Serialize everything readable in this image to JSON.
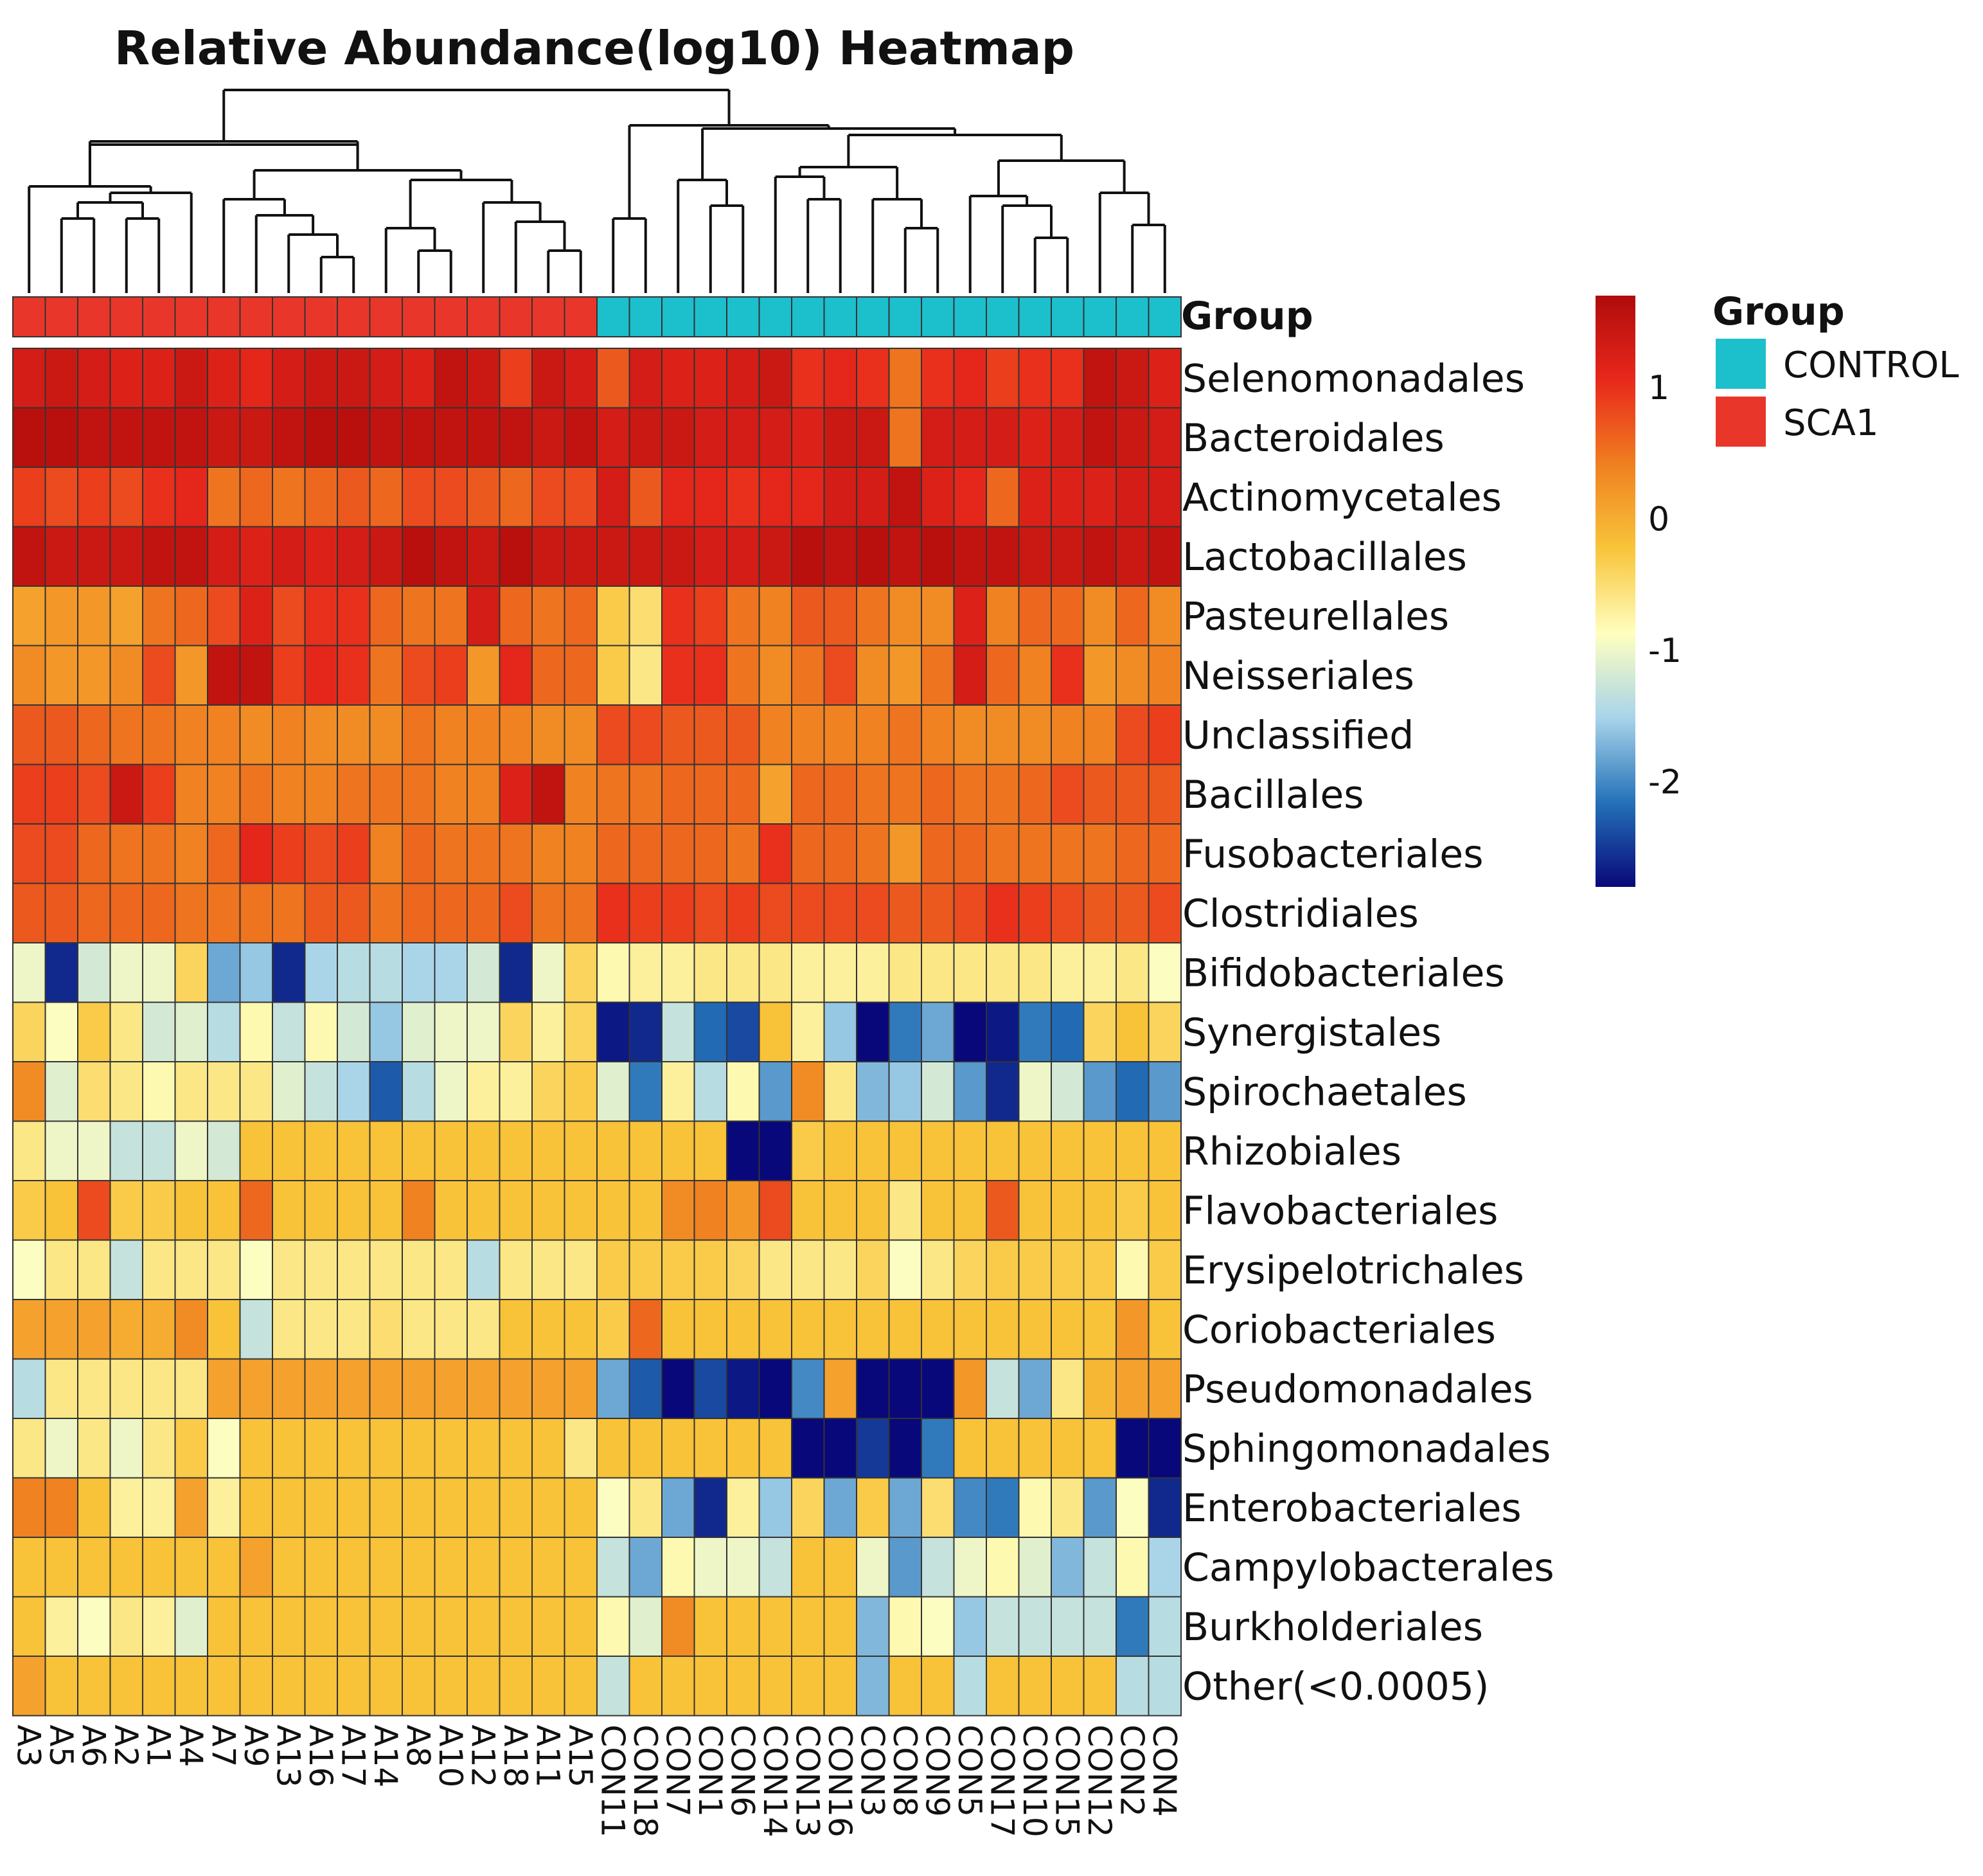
{
  "chart_data": {
    "type": "heatmap",
    "title": "Relative Abundance(log10) Heatmap",
    "group_row_label": "Group",
    "columns": [
      "A3",
      "A5",
      "A6",
      "A2",
      "A1",
      "A4",
      "A7",
      "A9",
      "A13",
      "A16",
      "A17",
      "A14",
      "A8",
      "A10",
      "A12",
      "A18",
      "A11",
      "A15",
      "CON11",
      "CON18",
      "CON7",
      "CON1",
      "CON6",
      "CON14",
      "CON13",
      "CON16",
      "CON3",
      "CON8",
      "CON9",
      "CON5",
      "CON17",
      "CON10",
      "CON15",
      "CON12",
      "CON2",
      "CON4"
    ],
    "column_groups": [
      "SCA1",
      "SCA1",
      "SCA1",
      "SCA1",
      "SCA1",
      "SCA1",
      "SCA1",
      "SCA1",
      "SCA1",
      "SCA1",
      "SCA1",
      "SCA1",
      "SCA1",
      "SCA1",
      "SCA1",
      "SCA1",
      "SCA1",
      "SCA1",
      "CONTROL",
      "CONTROL",
      "CONTROL",
      "CONTROL",
      "CONTROL",
      "CONTROL",
      "CONTROL",
      "CONTROL",
      "CONTROL",
      "CONTROL",
      "CONTROL",
      "CONTROL",
      "CONTROL",
      "CONTROL",
      "CONTROL",
      "CONTROL",
      "CONTROL",
      "CONTROL"
    ],
    "rows": [
      "Selenomonadales",
      "Bacteroidales",
      "Actinomycetales",
      "Lactobacillales",
      "Pasteurellales",
      "Neisseriales",
      "Unclassified",
      "Bacillales",
      "Fusobacteriales",
      "Clostridiales",
      "Bifidobacteriales",
      "Synergistales",
      "Spirochaetales",
      "Rhizobiales",
      "Flavobacteriales",
      "Erysipelotrichales",
      "Coriobacteriales",
      "Pseudomonadales",
      "Sphingomonadales",
      "Enterobacteriales",
      "Campylobacterales",
      "Burkholderiales",
      "Other(<0.0005)"
    ],
    "values": [
      [
        1.3,
        1.4,
        1.3,
        1.2,
        1.2,
        1.4,
        1.2,
        1.1,
        1.3,
        1.4,
        1.4,
        1.3,
        1.2,
        1.5,
        1.4,
        0.9,
        1.4,
        1.3,
        0.7,
        1.3,
        1.2,
        1.2,
        1.3,
        1.4,
        1.0,
        1.1,
        1.0,
        0.5,
        1.0,
        1.1,
        0.9,
        1.0,
        1.0,
        1.5,
        1.4,
        1.2
      ],
      [
        1.6,
        1.6,
        1.5,
        1.5,
        1.5,
        1.5,
        1.4,
        1.4,
        1.5,
        1.6,
        1.6,
        1.5,
        1.5,
        1.5,
        1.5,
        1.5,
        1.4,
        1.5,
        1.3,
        1.4,
        1.4,
        1.3,
        1.3,
        1.3,
        1.2,
        1.4,
        1.4,
        0.5,
        1.3,
        1.3,
        1.3,
        1.2,
        1.3,
        1.5,
        1.4,
        1.3
      ],
      [
        0.9,
        0.8,
        0.9,
        0.8,
        1.0,
        1.1,
        0.5,
        0.6,
        0.5,
        0.6,
        0.7,
        0.6,
        0.8,
        0.8,
        0.7,
        0.6,
        0.8,
        0.8,
        1.3,
        0.7,
        1.1,
        1.1,
        1.0,
        1.1,
        1.1,
        1.3,
        1.3,
        1.5,
        1.2,
        1.1,
        0.6,
        1.2,
        1.2,
        1.2,
        1.3,
        1.3
      ],
      [
        1.5,
        1.4,
        1.4,
        1.4,
        1.5,
        1.5,
        1.3,
        1.2,
        1.3,
        1.2,
        1.3,
        1.4,
        1.6,
        1.5,
        1.4,
        1.6,
        1.4,
        1.4,
        1.4,
        1.4,
        1.4,
        1.3,
        1.3,
        1.4,
        1.6,
        1.5,
        1.6,
        1.5,
        1.6,
        1.5,
        1.5,
        1.4,
        1.4,
        1.5,
        1.4,
        1.5
      ],
      [
        0.1,
        0.2,
        0.2,
        0.1,
        0.5,
        0.6,
        0.8,
        1.2,
        0.8,
        1.0,
        1.0,
        0.6,
        0.5,
        0.5,
        1.3,
        0.6,
        0.5,
        0.6,
        -0.3,
        -0.5,
        1.0,
        0.9,
        0.5,
        0.4,
        0.7,
        0.7,
        0.5,
        0.3,
        0.3,
        1.2,
        0.4,
        0.6,
        0.6,
        0.3,
        0.6,
        0.3
      ],
      [
        0.3,
        0.2,
        0.2,
        0.3,
        0.8,
        0.2,
        1.5,
        1.5,
        0.9,
        1.1,
        1.0,
        0.5,
        0.8,
        0.9,
        0.2,
        1.1,
        0.6,
        0.6,
        -0.3,
        -0.6,
        1.0,
        1.0,
        0.5,
        0.3,
        0.5,
        0.8,
        0.3,
        0.2,
        0.5,
        1.3,
        0.6,
        0.4,
        1.0,
        0.2,
        0.3,
        0.4
      ],
      [
        0.7,
        0.7,
        0.6,
        0.5,
        0.5,
        0.4,
        0.4,
        0.3,
        0.4,
        0.3,
        0.3,
        0.3,
        0.5,
        0.4,
        0.4,
        0.4,
        0.3,
        0.3,
        0.8,
        0.8,
        0.7,
        0.7,
        0.7,
        0.4,
        0.4,
        0.4,
        0.4,
        0.5,
        0.4,
        0.3,
        0.3,
        0.3,
        0.4,
        0.4,
        0.8,
        0.9
      ],
      [
        0.9,
        0.9,
        0.8,
        1.4,
        0.9,
        0.4,
        0.4,
        0.5,
        0.4,
        0.4,
        0.5,
        0.5,
        0.5,
        0.4,
        0.4,
        1.2,
        1.5,
        0.4,
        0.5,
        0.5,
        0.6,
        0.6,
        0.6,
        0.1,
        0.6,
        0.6,
        0.5,
        0.5,
        0.6,
        0.5,
        0.5,
        0.6,
        0.8,
        0.7,
        0.7,
        0.7
      ],
      [
        0.8,
        0.8,
        0.6,
        0.5,
        0.5,
        0.4,
        0.6,
        1.1,
        0.9,
        0.8,
        0.9,
        0.4,
        0.6,
        0.5,
        0.5,
        0.5,
        0.4,
        0.4,
        0.6,
        0.6,
        0.6,
        0.6,
        0.5,
        1.0,
        0.6,
        0.6,
        0.5,
        0.2,
        0.6,
        0.6,
        0.5,
        0.5,
        0.5,
        0.5,
        0.6,
        0.6
      ],
      [
        0.7,
        0.7,
        0.6,
        0.6,
        0.6,
        0.5,
        0.5,
        0.5,
        0.5,
        0.7,
        0.7,
        0.5,
        0.6,
        0.6,
        0.6,
        0.8,
        0.5,
        0.5,
        1.0,
        0.9,
        0.9,
        0.8,
        0.9,
        0.8,
        0.8,
        0.8,
        0.8,
        0.7,
        0.7,
        0.8,
        1.0,
        0.9,
        0.8,
        0.7,
        0.7,
        0.8
      ],
      [
        -1.0,
        -2.6,
        -1.2,
        -1.0,
        -1.0,
        -0.4,
        -1.8,
        -1.6,
        -2.6,
        -1.5,
        -1.4,
        -1.4,
        -1.5,
        -1.5,
        -1.2,
        -2.6,
        -1.0,
        -0.4,
        -0.8,
        -0.7,
        -0.7,
        -0.6,
        -0.6,
        -0.6,
        -0.7,
        -0.7,
        -0.7,
        -0.6,
        -0.6,
        -0.6,
        -0.6,
        -0.6,
        -0.7,
        -0.7,
        -0.6,
        -0.9
      ],
      [
        -0.4,
        -0.9,
        -0.3,
        -0.6,
        -1.2,
        -1.1,
        -1.4,
        -0.8,
        -1.3,
        -0.8,
        -1.2,
        -1.6,
        -1.1,
        -1.0,
        -1.0,
        -0.4,
        -0.7,
        -0.4,
        -2.7,
        -2.6,
        -1.3,
        -2.2,
        -2.4,
        -0.2,
        -0.7,
        -1.6,
        -2.8,
        -2.1,
        -1.8,
        -2.8,
        -2.7,
        -2.1,
        -2.2,
        -0.4,
        -0.2,
        -0.4
      ],
      [
        0.3,
        -1.1,
        -0.5,
        -0.6,
        -0.8,
        -0.6,
        -0.6,
        -0.6,
        -1.1,
        -1.3,
        -1.5,
        -2.3,
        -1.4,
        -1.0,
        -0.7,
        -0.7,
        -0.4,
        -0.3,
        -1.1,
        -2.1,
        -0.7,
        -1.4,
        -0.8,
        -1.9,
        0.3,
        -0.6,
        -1.7,
        -1.6,
        -1.2,
        -1.9,
        -2.6,
        -1.0,
        -1.2,
        -1.9,
        -2.2,
        -1.9
      ],
      [
        -0.6,
        -1.0,
        -1.0,
        -1.3,
        -1.3,
        -1.0,
        -1.2,
        -0.2,
        -0.2,
        -0.2,
        -0.2,
        -0.2,
        -0.2,
        -0.2,
        -0.2,
        -0.2,
        -0.2,
        -0.2,
        -0.2,
        -0.2,
        -0.2,
        -0.2,
        -2.8,
        -2.8,
        -0.3,
        -0.2,
        -0.2,
        -0.2,
        -0.2,
        -0.2,
        -0.2,
        -0.2,
        -0.2,
        -0.2,
        -0.2,
        -0.2
      ],
      [
        -0.3,
        -0.2,
        0.8,
        -0.3,
        -0.3,
        -0.2,
        -0.2,
        0.6,
        -0.2,
        -0.2,
        -0.2,
        -0.2,
        0.4,
        -0.2,
        -0.2,
        -0.2,
        -0.2,
        -0.2,
        -0.2,
        -0.2,
        0.3,
        0.4,
        0.2,
        0.8,
        -0.2,
        -0.2,
        -0.2,
        -0.6,
        -0.2,
        -0.2,
        0.7,
        -0.2,
        -0.2,
        -0.2,
        -0.3,
        -0.2
      ],
      [
        -0.9,
        -0.6,
        -0.6,
        -1.3,
        -0.6,
        -0.6,
        -0.6,
        -0.9,
        -0.6,
        -0.6,
        -0.6,
        -0.6,
        -0.6,
        -0.6,
        -1.4,
        -0.6,
        -0.6,
        -0.6,
        -0.3,
        -0.3,
        -0.3,
        -0.3,
        -0.4,
        -0.6,
        -0.6,
        -0.6,
        -0.4,
        -0.9,
        -0.6,
        -0.4,
        -0.3,
        -0.3,
        -0.3,
        -0.3,
        -0.8,
        -0.3
      ],
      [
        0.1,
        0.1,
        0.1,
        0.0,
        0.0,
        0.3,
        -0.2,
        -1.3,
        -0.6,
        -0.6,
        -0.6,
        -0.5,
        -0.6,
        -0.6,
        -0.6,
        -0.2,
        -0.2,
        -0.2,
        -0.3,
        0.6,
        -0.2,
        -0.2,
        -0.2,
        -0.2,
        -0.2,
        -0.2,
        -0.2,
        -0.2,
        -0.2,
        -0.2,
        -0.2,
        -0.2,
        -0.2,
        -0.2,
        0.2,
        -0.2
      ],
      [
        -1.4,
        -0.6,
        -0.6,
        -0.6,
        -0.6,
        -0.6,
        0.1,
        0.1,
        0.1,
        0.1,
        0.1,
        0.1,
        0.1,
        0.1,
        0.1,
        0.1,
        0.1,
        0.1,
        -1.8,
        -2.3,
        -2.8,
        -2.4,
        -2.7,
        -2.8,
        -2.0,
        0.1,
        -2.8,
        -2.8,
        -2.9,
        0.2,
        -1.3,
        -1.8,
        -0.6,
        -0.1,
        0.1,
        0.1
      ],
      [
        -0.6,
        -1.0,
        -0.6,
        -1.0,
        -0.6,
        -0.3,
        -0.9,
        -0.2,
        -0.2,
        -0.2,
        -0.2,
        -0.2,
        -0.2,
        -0.2,
        -0.2,
        -0.2,
        -0.2,
        -0.6,
        -0.2,
        -0.2,
        -0.2,
        -0.2,
        -0.2,
        -0.2,
        -2.8,
        -2.9,
        -2.5,
        -2.9,
        -2.1,
        -0.2,
        -0.2,
        -0.2,
        -0.2,
        -0.2,
        -2.9,
        -2.9
      ],
      [
        0.4,
        0.4,
        -0.2,
        -0.7,
        -0.7,
        0.1,
        -0.7,
        -0.2,
        -0.2,
        -0.2,
        -0.2,
        -0.2,
        -0.2,
        -0.2,
        -0.2,
        -0.2,
        -0.2,
        -0.2,
        -0.9,
        -0.6,
        -1.8,
        -2.6,
        -0.7,
        -1.6,
        -0.4,
        -1.8,
        -0.3,
        -1.8,
        -0.5,
        -2.0,
        -2.1,
        -0.8,
        -0.6,
        -1.9,
        -0.9,
        -2.6
      ],
      [
        -0.2,
        -0.2,
        -0.2,
        -0.2,
        -0.2,
        -0.2,
        -0.2,
        0.1,
        -0.2,
        -0.2,
        -0.2,
        -0.2,
        -0.2,
        -0.2,
        -0.2,
        -0.2,
        -0.2,
        -0.2,
        -1.3,
        -1.8,
        -0.8,
        -1.0,
        -1.0,
        -1.3,
        -0.2,
        -0.2,
        -1.0,
        -1.9,
        -1.3,
        -1.0,
        -0.8,
        -1.1,
        -1.7,
        -1.3,
        -0.8,
        -1.5
      ],
      [
        -0.2,
        -0.7,
        -0.9,
        -0.6,
        -0.7,
        -1.1,
        -0.2,
        -0.2,
        -0.2,
        -0.2,
        -0.2,
        -0.2,
        -0.2,
        -0.2,
        -0.2,
        -0.2,
        -0.2,
        -0.2,
        -0.8,
        -1.1,
        0.3,
        -0.2,
        -0.2,
        -0.2,
        -0.2,
        -0.2,
        -1.7,
        -0.8,
        -0.9,
        -1.6,
        -1.3,
        -1.3,
        -1.3,
        -1.3,
        -2.1,
        -1.4
      ],
      [
        0.1,
        -0.2,
        -0.2,
        -0.2,
        -0.2,
        -0.2,
        -0.2,
        -0.2,
        -0.2,
        -0.2,
        -0.2,
        -0.2,
        -0.2,
        -0.2,
        -0.2,
        -0.2,
        -0.2,
        -0.2,
        -1.3,
        -0.2,
        -0.2,
        -0.2,
        -0.2,
        -0.2,
        -0.2,
        -0.2,
        -1.7,
        -0.2,
        -0.2,
        -1.4,
        -0.2,
        -0.2,
        -0.2,
        -0.2,
        -1.4,
        -1.4
      ]
    ],
    "colorbar": {
      "ticks": [
        1,
        0,
        -1,
        -2
      ],
      "tick_labels": [
        "1",
        "0",
        "-1",
        "-2"
      ],
      "range": [
        -2.8,
        1.7
      ],
      "colors": [
        "#08087a",
        "#2471b8",
        "#a8d4ea",
        "#ffffbf",
        "#f8c53a",
        "#f08020",
        "#e8281c",
        "#b00b0b"
      ]
    },
    "legend": {
      "title": "Group",
      "items": [
        {
          "label": "CONTROL",
          "color": "#1cbfcc"
        },
        {
          "label": "SCA1",
          "color": "#e8372a"
        }
      ]
    },
    "dendrogram": "columns"
  }
}
